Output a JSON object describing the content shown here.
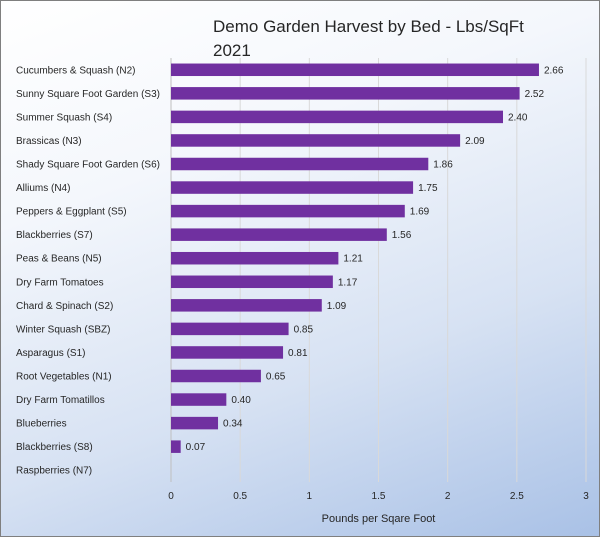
{
  "chart_data": {
    "type": "bar",
    "orientation": "horizontal",
    "title": "Demo Garden Harvest by Bed - Lbs/SqFt\n2021",
    "xlabel": "Pounds per Sqare Foot",
    "ylabel": "",
    "xlim": [
      0,
      3
    ],
    "xticks": [
      "0",
      "0.5",
      "1",
      "1.5",
      "2",
      "2.5",
      "3"
    ],
    "grid": true,
    "legend": "none",
    "bar_color": "#7030a0",
    "categories": [
      "Cucumbers & Squash (N2)",
      "Sunny Square Foot Garden (S3)",
      "Summer Squash (S4)",
      "Brassicas (N3)",
      "Shady Square Foot Garden (S6)",
      "Alliums (N4)",
      "Peppers & Eggplant (S5)",
      "Blackberries (S7)",
      "Peas & Beans (N5)",
      "Dry Farm Tomatoes",
      "Chard & Spinach (S2)",
      "Winter Squash (SBZ)",
      "Asparagus (S1)",
      "Root Vegetables (N1)",
      "Dry Farm Tomatillos",
      "Blueberries",
      "Blackberries (S8)",
      "Raspberries (N7)"
    ],
    "values": [
      2.66,
      2.52,
      2.4,
      2.09,
      1.86,
      1.75,
      1.69,
      1.56,
      1.21,
      1.17,
      1.09,
      0.85,
      0.81,
      0.65,
      0.4,
      0.34,
      0.07,
      null
    ],
    "data_labels": [
      "2.66",
      "2.52",
      "2.40",
      "2.09",
      "1.86",
      "1.75",
      "1.69",
      "1.56",
      "1.21",
      "1.17",
      "1.09",
      "0.85",
      "0.81",
      "0.65",
      "0.40",
      "0.34",
      "0.07",
      ""
    ]
  }
}
